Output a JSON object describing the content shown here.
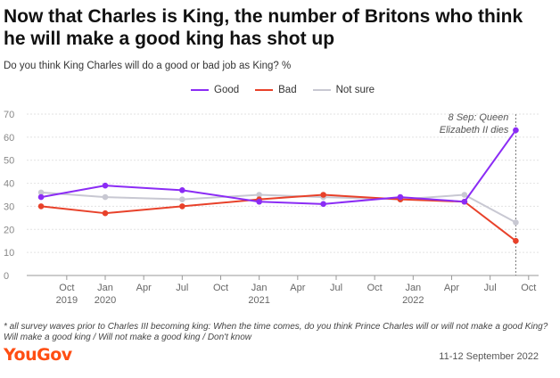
{
  "title": "Now that Charles is King, the number of Britons who think he will make a good king has shot up",
  "subtitle": "Do you think King Charles will do a good or bad job as King? %",
  "footnote": "* all survey waves prior to Charles III becoming king: When the time comes, do you think Prince Charles will or will not make a good King? Will make a good king / Will not make a good king / Don't know",
  "brand": "YouGov",
  "fieldwork_date": "11-12 September 2022",
  "colors": {
    "good": "#8b2cf5",
    "bad": "#e8412a",
    "not_sure": "#c8c8d2",
    "axis": "#999999",
    "grid": "#e2e2e2"
  },
  "chart_data": {
    "type": "line",
    "y_range": [
      0,
      70
    ],
    "y_ticks": [
      "0",
      "10",
      "20",
      "30",
      "40",
      "50",
      "60",
      "70"
    ],
    "x_range": [
      "2019-08",
      "2022-10"
    ],
    "x_ticks": [
      {
        "x": "2019-10",
        "label": "Oct",
        "year": "2019"
      },
      {
        "x": "2020-01",
        "label": "Jan",
        "year": "2020"
      },
      {
        "x": "2020-04",
        "label": "Apr",
        "year": ""
      },
      {
        "x": "2020-07",
        "label": "Jul",
        "year": ""
      },
      {
        "x": "2020-10",
        "label": "Oct",
        "year": ""
      },
      {
        "x": "2021-01",
        "label": "Jan",
        "year": "2021"
      },
      {
        "x": "2021-04",
        "label": "Apr",
        "year": ""
      },
      {
        "x": "2021-07",
        "label": "Jul",
        "year": ""
      },
      {
        "x": "2021-10",
        "label": "Oct",
        "year": ""
      },
      {
        "x": "2022-01",
        "label": "Jan",
        "year": "2022"
      },
      {
        "x": "2022-04",
        "label": "Apr",
        "year": ""
      },
      {
        "x": "2022-07",
        "label": "Jul",
        "year": ""
      },
      {
        "x": "2022-10",
        "label": "Oct",
        "year": ""
      }
    ],
    "series": [
      {
        "name": "Good",
        "key": "good",
        "points": [
          [
            "2019-08",
            34
          ],
          [
            "2020-01",
            39
          ],
          [
            "2020-07",
            37
          ],
          [
            "2021-01",
            32
          ],
          [
            "2021-06",
            31
          ],
          [
            "2021-12",
            34
          ],
          [
            "2022-05",
            32
          ],
          [
            "2022-09",
            63
          ]
        ]
      },
      {
        "name": "Bad",
        "key": "bad",
        "points": [
          [
            "2019-08",
            30
          ],
          [
            "2020-01",
            27
          ],
          [
            "2020-07",
            30
          ],
          [
            "2021-01",
            33
          ],
          [
            "2021-06",
            35
          ],
          [
            "2021-12",
            33
          ],
          [
            "2022-05",
            32
          ],
          [
            "2022-09",
            15
          ]
        ]
      },
      {
        "name": "Not sure",
        "key": "not_sure",
        "points": [
          [
            "2019-08",
            36
          ],
          [
            "2020-01",
            34
          ],
          [
            "2020-07",
            33
          ],
          [
            "2021-01",
            35
          ],
          [
            "2021-06",
            34
          ],
          [
            "2021-12",
            33
          ],
          [
            "2022-05",
            35
          ],
          [
            "2022-09",
            23
          ]
        ]
      }
    ],
    "annotation": {
      "x": "2022-09",
      "line1": "8 Sep: Queen",
      "line2": "Elizabeth II dies"
    }
  }
}
